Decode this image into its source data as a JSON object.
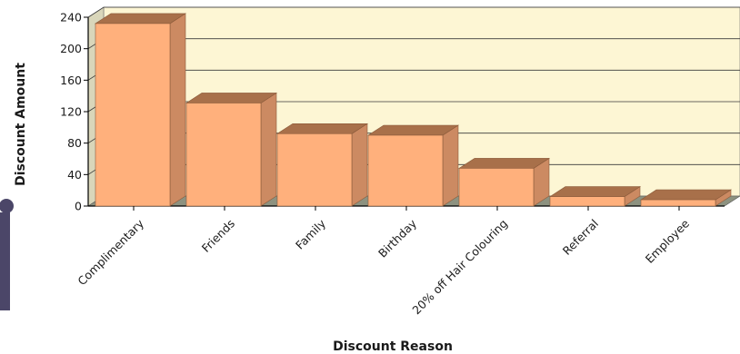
{
  "chart_data": {
    "type": "bar",
    "style": "3d",
    "categories": [
      "Complimentary",
      "Friends",
      "Family",
      "Birthday",
      "20% off Hair Colouring",
      "Referral",
      "Employee"
    ],
    "values": [
      232,
      131,
      92,
      90,
      48,
      12,
      8
    ],
    "xlabel": "Discount Reason",
    "ylabel": "Discount Amount",
    "ylim": [
      0,
      240
    ],
    "yticks": [
      "0",
      "40",
      "80",
      "120",
      "160",
      "200",
      "240"
    ],
    "grid": true,
    "legend": "none"
  },
  "colors": {
    "bar_front": "#ffb07c",
    "bar_top": "#a8704a",
    "bar_side": "#cc8a62",
    "bar_stroke": "#8a5a3a",
    "plot_back": "#fdf6d4",
    "plot_left_wall": "#d9d6ba",
    "plot_floor": "#8d9280",
    "gridline": "#3a3a3a",
    "axis_line": "#000000",
    "decoration": "#4b4668"
  }
}
